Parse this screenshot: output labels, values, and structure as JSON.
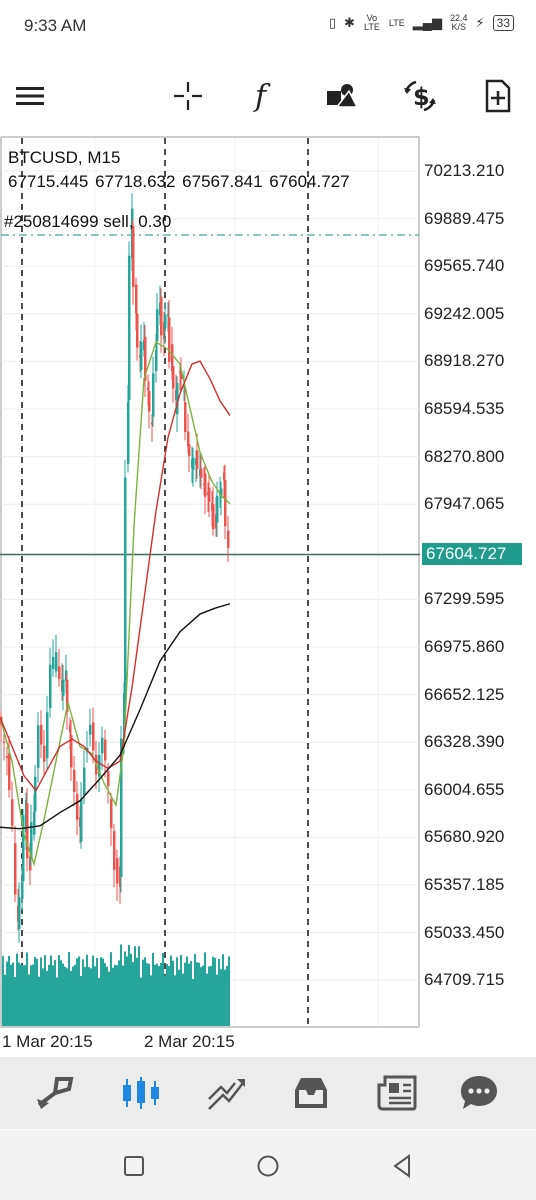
{
  "status": {
    "time": "9:33 AM",
    "net_speed_value": "22.4",
    "net_speed_unit": "K/S",
    "battery": "33",
    "volte": "Vo LTE",
    "lte": "LTE"
  },
  "toolbar": {
    "icons": [
      "menu-icon",
      "crosshair-icon",
      "indicators-icon",
      "objects-icon",
      "trade-icon",
      "new-template-icon"
    ]
  },
  "chart": {
    "symbol": "BTCUSD, M15",
    "ohlc": "67715.445 67718.632 67567.841 67604.727",
    "order": "#250814699 sell, 0.30",
    "price_labels": [
      "70213.210",
      "69889.475",
      "69565.740",
      "69242.005",
      "68918.270",
      "68594.535",
      "68270.800",
      "67947.065",
      "67299.595",
      "66975.860",
      "66652.125",
      "66328.390",
      "66004.655",
      "65680.920",
      "65357.185",
      "65033.450",
      "64709.715"
    ],
    "current_price": "67604.727",
    "time_labels": [
      "1 Mar 20:15",
      "2 Mar 20:15"
    ],
    "colors": {
      "bull": "#26a69a",
      "bear": "#ef5350",
      "volume": "#26a69a",
      "ma_fast": "#7cb342",
      "ma_mid": "#d32f2f",
      "ma_slow": "#111111",
      "order_line": "#4aa3a3"
    }
  },
  "bottom_nav": {
    "icons": [
      "quotes-icon",
      "chart-icon",
      "trade-icon",
      "history-icon",
      "news-icon",
      "messages-icon"
    ]
  },
  "system_nav": {
    "icons": [
      "recent-apps-icon",
      "home-icon",
      "back-icon"
    ]
  }
}
